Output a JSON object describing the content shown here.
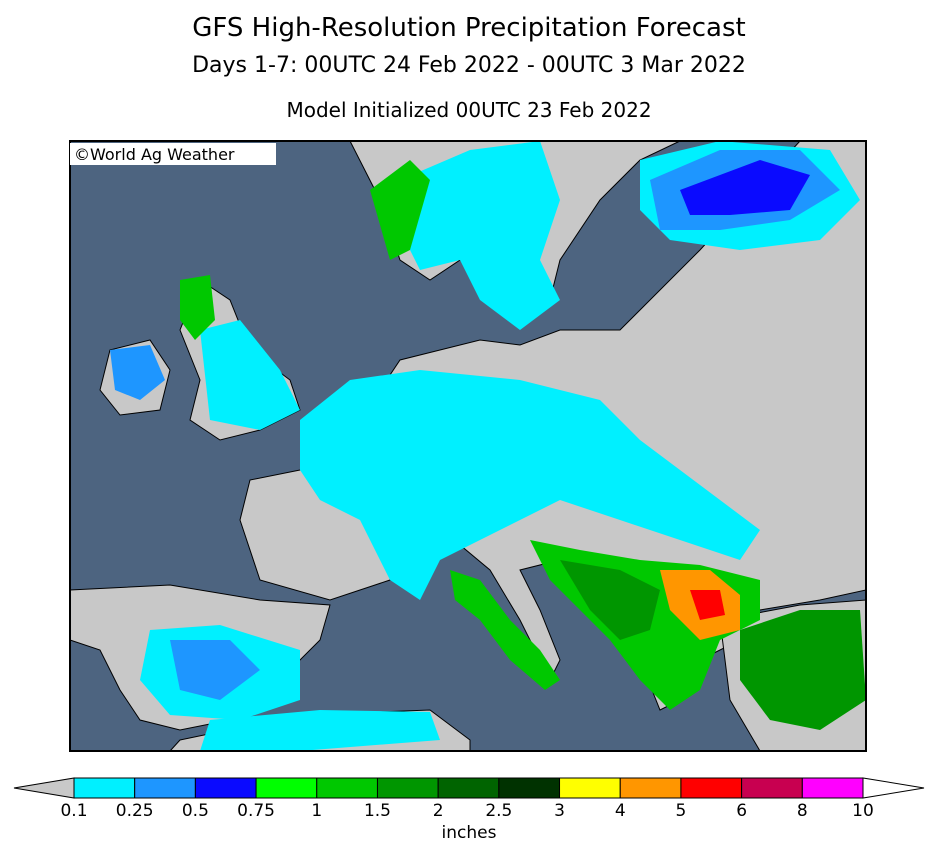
{
  "header": {
    "title": "GFS High-Resolution Precipitation Forecast",
    "subtitle": "Days 1-7: 00UTC 24 Feb 2022 - 00UTC 3 Mar 2022",
    "initialized": "Model Initialized 00UTC 23 Feb 2022"
  },
  "map": {
    "credit": "©World Ag Weather"
  },
  "colorbar": {
    "ticks": [
      0.1,
      0.25,
      0.5,
      0.75,
      1,
      1.5,
      2,
      2.5,
      3,
      4,
      5,
      6,
      8,
      10
    ],
    "colors": [
      "#00f0ff",
      "#1e96ff",
      "#0a0aff",
      "#00ff00",
      "#00c800",
      "#009600",
      "#006400",
      "#003200",
      "#ffff00",
      "#ff9600",
      "#ff0000",
      "#c80050",
      "#ff00ff",
      "#a050d2"
    ],
    "under_color": "#c8c8c8",
    "over_color": "#ffffff",
    "unit": "inches"
  }
}
